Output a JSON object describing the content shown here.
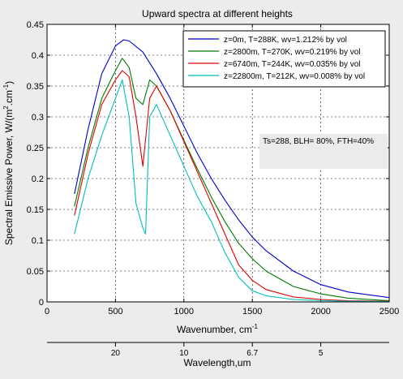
{
  "chart_data": {
    "type": "line",
    "title": "Upward spectra at different heights",
    "xlabel": "Wavenumber, cm",
    "xlabel_sup": "-1",
    "ylabel": "Spectral Emissive Power, W/(m",
    "ylabel_sup1": "2",
    "ylabel_mid": ".cm",
    "ylabel_sup2": "-1",
    "ylabel_end": ")",
    "xlim": [
      0,
      2500
    ],
    "ylim": [
      0,
      0.45
    ],
    "xticks": [
      0,
      500,
      1000,
      1500,
      2000,
      2500
    ],
    "yticks": [
      0,
      0.05,
      0.1,
      0.15,
      0.2,
      0.25,
      0.3,
      0.35,
      0.4,
      0.45
    ],
    "ytick_labels": [
      "0",
      "0.05",
      "0.1",
      "0.15",
      "0.2",
      "0.25",
      "0.3",
      "0.35",
      "0.4",
      "0.45"
    ],
    "grid": true,
    "legend_position": "top-right",
    "annotation": "Ts=288, BLH= 80%, FTH=40%",
    "series": [
      {
        "name": "z=0m, T=288K, wv=1.212% by vol",
        "color": "#0000cc",
        "temperature_K": 288,
        "x": [
          200,
          300,
          400,
          500,
          560,
          600,
          700,
          800,
          900,
          1000,
          1100,
          1200,
          1300,
          1400,
          1500,
          1600,
          1800,
          2000,
          2200,
          2500
        ],
        "y": [
          0.175,
          0.28,
          0.37,
          0.415,
          0.425,
          0.423,
          0.405,
          0.37,
          0.33,
          0.285,
          0.24,
          0.2,
          0.165,
          0.133,
          0.105,
          0.083,
          0.05,
          0.028,
          0.016,
          0.007
        ]
      },
      {
        "name": "z=2800m, T=270K, wv=0.219% by vol",
        "color": "#007a00",
        "temperature_K": 270,
        "x": [
          200,
          300,
          400,
          500,
          550,
          600,
          650,
          700,
          750,
          800,
          900,
          1000,
          1100,
          1200,
          1300,
          1400,
          1500,
          1600,
          1800,
          2000,
          2200,
          2500
        ],
        "y": [
          0.155,
          0.25,
          0.33,
          0.375,
          0.395,
          0.38,
          0.33,
          0.32,
          0.36,
          0.35,
          0.31,
          0.262,
          0.215,
          0.17,
          0.13,
          0.095,
          0.07,
          0.05,
          0.025,
          0.013,
          0.006,
          0.002
        ]
      },
      {
        "name": "z=6740m, T=244K, wv=0.035% by vol",
        "color": "#e00000",
        "temperature_K": 244,
        "x": [
          200,
          300,
          400,
          500,
          550,
          600,
          650,
          700,
          750,
          800,
          900,
          1000,
          1100,
          1200,
          1300,
          1400,
          1500,
          1600,
          1800,
          2000,
          2200,
          2500
        ],
        "y": [
          0.14,
          0.24,
          0.32,
          0.36,
          0.375,
          0.365,
          0.3,
          0.22,
          0.33,
          0.35,
          0.31,
          0.26,
          0.21,
          0.16,
          0.11,
          0.06,
          0.035,
          0.02,
          0.008,
          0.004,
          0.002,
          0.001
        ]
      },
      {
        "name": "z=22800m, T=212K, wv=0.008% by vol",
        "color": "#00bfbf",
        "temperature_K": 212,
        "x": [
          200,
          300,
          400,
          500,
          550,
          600,
          650,
          700,
          720,
          750,
          800,
          900,
          1000,
          1100,
          1200,
          1300,
          1400,
          1500,
          1600,
          1800,
          2000,
          2200,
          2500
        ],
        "y": [
          0.11,
          0.2,
          0.27,
          0.33,
          0.36,
          0.3,
          0.16,
          0.12,
          0.11,
          0.3,
          0.32,
          0.27,
          0.22,
          0.17,
          0.13,
          0.08,
          0.04,
          0.018,
          0.01,
          0.004,
          0.002,
          0.001,
          0.0005
        ]
      }
    ],
    "secondary_axis": {
      "label": "Wavelength,um",
      "ticks": [
        {
          "wavenumber": 500,
          "label": "20"
        },
        {
          "wavenumber": 1000,
          "label": "10"
        },
        {
          "wavenumber": 1500,
          "label": "6.7"
        },
        {
          "wavenumber": 2000,
          "label": "5"
        }
      ]
    }
  }
}
